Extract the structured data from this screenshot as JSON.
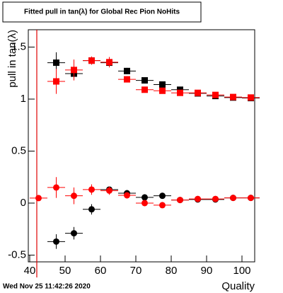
{
  "chart_data": {
    "type": "scatter",
    "title": "Fitted pull in tan(λ) for Global Rec Pion NoHits",
    "y_label": "pull in tan(λ)",
    "x_label": "Quality",
    "timestamp": "Wed Nov 25 11:42:26 2020",
    "xlim": [
      39.6,
      103.6
    ],
    "ylim": [
      -0.565,
      1.667
    ],
    "xticks": [
      40,
      50,
      60,
      70,
      80,
      90,
      100
    ],
    "yticks": [
      -0.5,
      0,
      0.5,
      1,
      1.5
    ],
    "xerr": 2.5,
    "cut_line": 42,
    "x": [
      42.5,
      47.5,
      52.5,
      57.5,
      62.5,
      67.5,
      72.5,
      77.5,
      82.5,
      87.5,
      92.5,
      97.5,
      102.5
    ],
    "series": [
      {
        "color": "#000000",
        "marker": "square",
        "values": [
          null,
          1.35,
          1.245,
          1.37,
          1.35,
          1.27,
          1.18,
          1.14,
          1.09,
          1.055,
          1.03,
          1.015,
          1.01
        ],
        "errors": [
          null,
          0.1,
          0.05,
          0.03,
          0.03,
          0.03,
          0.02,
          0.02,
          0.02,
          0.02,
          0.02,
          0.02,
          0.02
        ]
      },
      {
        "color": "#ff0000",
        "marker": "square",
        "values": [
          null,
          1.17,
          1.28,
          1.37,
          1.355,
          1.19,
          1.09,
          1.08,
          1.06,
          1.06,
          1.04,
          1.02,
          1.015
        ],
        "errors": [
          null,
          0.12,
          0.1,
          0.04,
          0.05,
          0.03,
          0.02,
          0.02,
          0.02,
          0.02,
          0.02,
          0.02,
          0.02
        ]
      },
      {
        "color": "#000000",
        "marker": "circle",
        "values": [
          null,
          -0.37,
          -0.29,
          -0.06,
          0.13,
          0.095,
          0.055,
          0.07,
          0.03,
          0.035,
          0.035,
          0.05,
          0.05
        ],
        "errors": [
          null,
          0.07,
          0.06,
          0.05,
          0.03,
          0.03,
          0.02,
          0.02,
          0.02,
          0.02,
          0.02,
          0.02,
          0.02
        ]
      },
      {
        "color": "#ff0000",
        "marker": "circle",
        "values": [
          0.048,
          0.15,
          0.07,
          0.13,
          0.12,
          0.075,
          0.0,
          -0.02,
          0.03,
          0.04,
          0.04,
          0.05,
          0.05
        ],
        "errors": [
          0.01,
          0.1,
          0.08,
          0.05,
          0.04,
          0.03,
          0.02,
          0.02,
          0.02,
          0.02,
          0.02,
          0.02,
          0.02
        ]
      }
    ]
  }
}
